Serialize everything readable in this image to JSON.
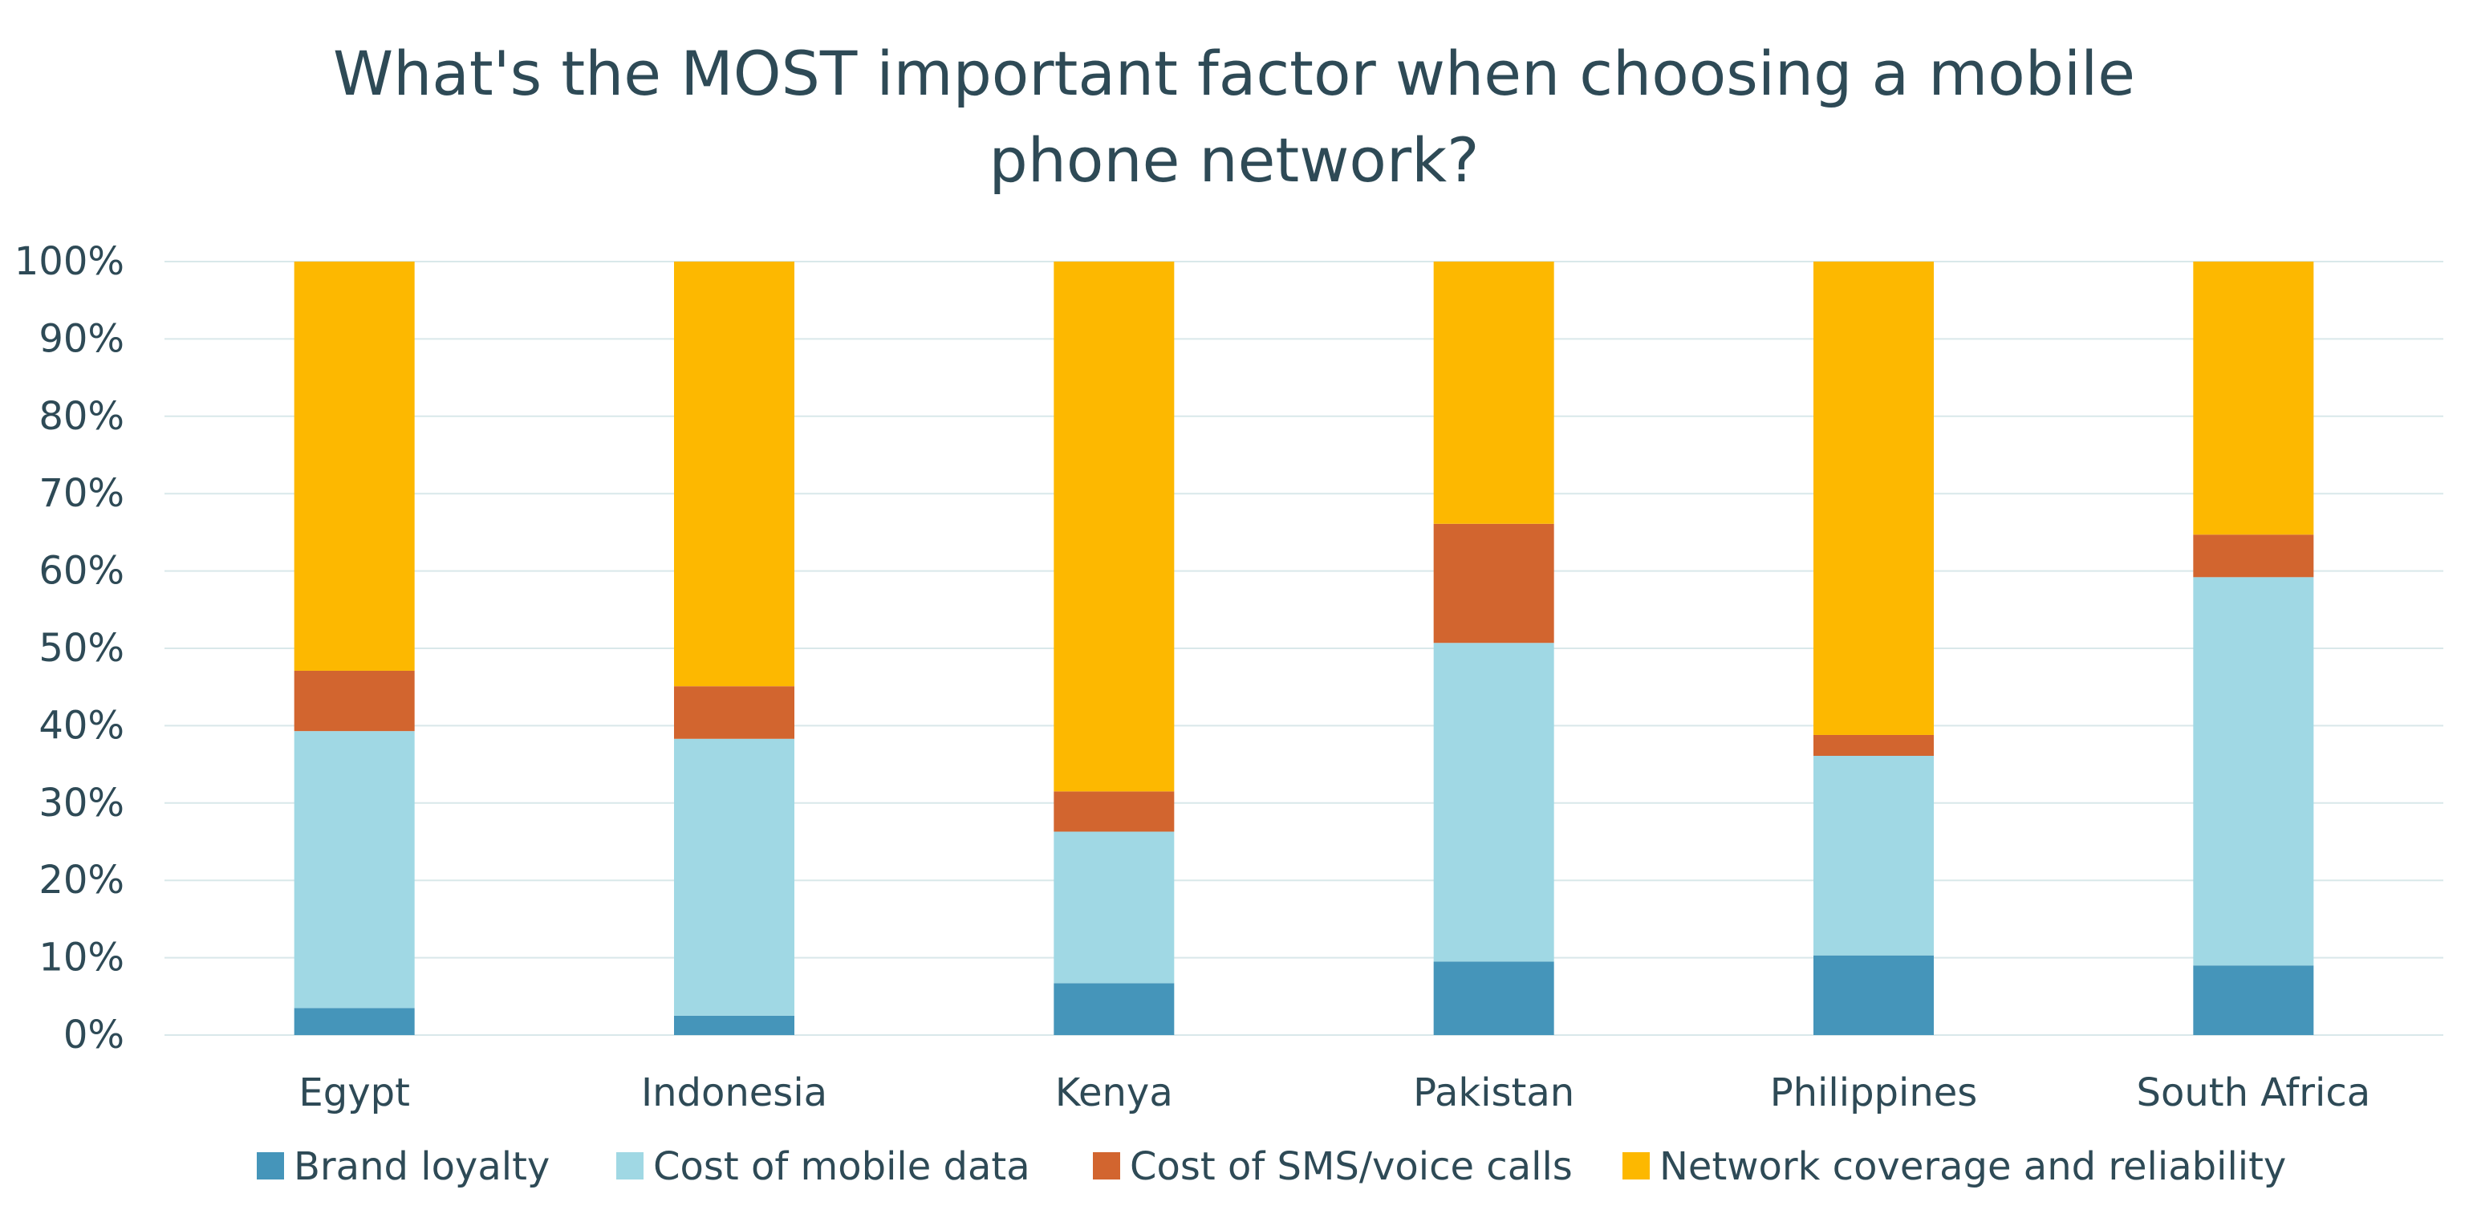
{
  "chart_data": {
    "type": "bar",
    "stacked": true,
    "percent": true,
    "title_lines": [
      "What's the MOST important factor when choosing a mobile",
      "phone network?"
    ],
    "categories": [
      "Egypt",
      "Indonesia",
      "Kenya",
      "Pakistan",
      "Philippines",
      "South Africa"
    ],
    "yticks": [
      "0%",
      "10%",
      "20%",
      "30%",
      "40%",
      "50%",
      "60%",
      "70%",
      "80%",
      "90%",
      "100%"
    ],
    "ylim": [
      0,
      100
    ],
    "grid": true,
    "legend_position": "bottom",
    "series": [
      {
        "name": "Brand loyalty",
        "color": "#4595BA",
        "values": [
          3.5,
          2.5,
          6.7,
          9.5,
          10.3,
          9.0
        ]
      },
      {
        "name": "Cost of mobile data",
        "color": "#A0D8E4",
        "values": [
          35.8,
          35.8,
          19.6,
          41.2,
          25.8,
          50.2
        ]
      },
      {
        "name": "Cost of SMS/voice calls",
        "color": "#D2652F",
        "values": [
          7.8,
          6.8,
          5.2,
          15.4,
          2.7,
          5.5
        ]
      },
      {
        "name": "Network coverage and reliability",
        "color": "#FDB800",
        "values": [
          52.9,
          54.9,
          68.5,
          33.9,
          61.2,
          35.3
        ]
      }
    ]
  }
}
